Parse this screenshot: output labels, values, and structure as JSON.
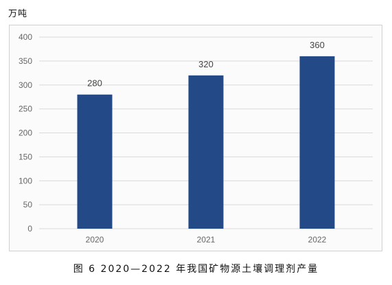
{
  "unit_label": "万吨",
  "caption": "图 6  2020—2022 年我国矿物源土壤调理剂产量",
  "colors": {
    "bar": "#234a86",
    "grid": "#dadada",
    "frame": "#d0d0d0",
    "background": "#fbfbfb"
  },
  "chart_data": {
    "type": "bar",
    "categories": [
      "2020",
      "2021",
      "2022"
    ],
    "values": [
      280,
      320,
      360
    ],
    "ylabel": "万吨",
    "ylim": [
      0,
      400
    ],
    "yticks": [
      0,
      50,
      100,
      150,
      200,
      250,
      300,
      350,
      400
    ],
    "data_labels": [
      "280",
      "320",
      "360"
    ],
    "grid": true,
    "legend": false
  }
}
